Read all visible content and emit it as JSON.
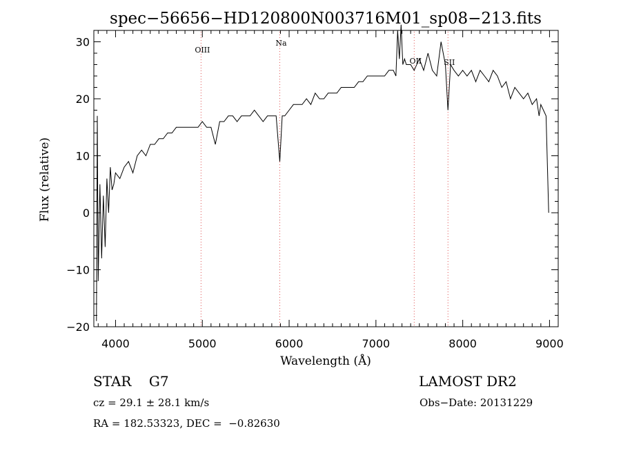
{
  "chart_data": {
    "type": "line",
    "title": "spec−56656−HD120800N003716M01_sp08−213.fits",
    "xlabel": "Wavelength (Å)",
    "ylabel": "Flux (relative)",
    "xlim": [
      3750,
      9100
    ],
    "ylim": [
      -20,
      32
    ],
    "xticks": [
      4000,
      5000,
      6000,
      7000,
      8000,
      9000
    ],
    "xtick_labels": [
      "4000",
      "5000",
      "6000",
      "7000",
      "8000",
      "9000"
    ],
    "yticks": [
      -20,
      -10,
      0,
      10,
      20,
      30
    ],
    "ytick_labels": [
      "−20",
      "−10",
      "0",
      "10",
      "20",
      "30"
    ],
    "grid": false,
    "spectral_lines": [
      {
        "label": "OIII",
        "x": 4985
      },
      {
        "label": "Na",
        "x": 5892
      },
      {
        "label": "OII",
        "x": 7441
      },
      {
        "label": "SII",
        "x": 7830
      }
    ],
    "series": [
      {
        "color": "#000000",
        "points": [
          [
            3780,
            -19
          ],
          [
            3790,
            17
          ],
          [
            3800,
            -12
          ],
          [
            3820,
            5
          ],
          [
            3840,
            -8
          ],
          [
            3860,
            3
          ],
          [
            3880,
            -6
          ],
          [
            3900,
            6
          ],
          [
            3920,
            0
          ],
          [
            3940,
            8
          ],
          [
            3960,
            4
          ],
          [
            3980,
            5
          ],
          [
            4000,
            7
          ],
          [
            4050,
            6
          ],
          [
            4100,
            8
          ],
          [
            4150,
            9
          ],
          [
            4200,
            7
          ],
          [
            4250,
            10
          ],
          [
            4300,
            11
          ],
          [
            4350,
            10
          ],
          [
            4400,
            12
          ],
          [
            4450,
            12
          ],
          [
            4500,
            13
          ],
          [
            4550,
            13
          ],
          [
            4600,
            14
          ],
          [
            4650,
            14
          ],
          [
            4700,
            15
          ],
          [
            4750,
            15
          ],
          [
            4800,
            15
          ],
          [
            4850,
            15
          ],
          [
            4900,
            15
          ],
          [
            4950,
            15
          ],
          [
            5000,
            16
          ],
          [
            5050,
            15
          ],
          [
            5100,
            15
          ],
          [
            5150,
            12
          ],
          [
            5200,
            16
          ],
          [
            5250,
            16
          ],
          [
            5300,
            17
          ],
          [
            5350,
            17
          ],
          [
            5400,
            16
          ],
          [
            5450,
            17
          ],
          [
            5500,
            17
          ],
          [
            5550,
            17
          ],
          [
            5600,
            18
          ],
          [
            5650,
            17
          ],
          [
            5700,
            16
          ],
          [
            5750,
            17
          ],
          [
            5800,
            17
          ],
          [
            5850,
            17
          ],
          [
            5892,
            9
          ],
          [
            5920,
            17
          ],
          [
            5950,
            17
          ],
          [
            6000,
            18
          ],
          [
            6050,
            19
          ],
          [
            6100,
            19
          ],
          [
            6150,
            19
          ],
          [
            6200,
            20
          ],
          [
            6250,
            19
          ],
          [
            6300,
            21
          ],
          [
            6350,
            20
          ],
          [
            6400,
            20
          ],
          [
            6450,
            21
          ],
          [
            6500,
            21
          ],
          [
            6550,
            21
          ],
          [
            6600,
            22
          ],
          [
            6650,
            22
          ],
          [
            6700,
            22
          ],
          [
            6750,
            22
          ],
          [
            6800,
            23
          ],
          [
            6850,
            23
          ],
          [
            6900,
            24
          ],
          [
            6950,
            24
          ],
          [
            7000,
            24
          ],
          [
            7050,
            24
          ],
          [
            7100,
            24
          ],
          [
            7150,
            25
          ],
          [
            7200,
            25
          ],
          [
            7230,
            24
          ],
          [
            7250,
            32
          ],
          [
            7270,
            27
          ],
          [
            7290,
            33
          ],
          [
            7310,
            26
          ],
          [
            7330,
            27
          ],
          [
            7350,
            26
          ],
          [
            7400,
            26
          ],
          [
            7440,
            25
          ],
          [
            7500,
            27
          ],
          [
            7550,
            25
          ],
          [
            7600,
            28
          ],
          [
            7650,
            25
          ],
          [
            7700,
            24
          ],
          [
            7750,
            30
          ],
          [
            7800,
            26
          ],
          [
            7830,
            18
          ],
          [
            7860,
            26
          ],
          [
            7900,
            25
          ],
          [
            7950,
            24
          ],
          [
            8000,
            25
          ],
          [
            8050,
            24
          ],
          [
            8100,
            25
          ],
          [
            8150,
            23
          ],
          [
            8200,
            25
          ],
          [
            8250,
            24
          ],
          [
            8300,
            23
          ],
          [
            8350,
            25
          ],
          [
            8400,
            24
          ],
          [
            8450,
            22
          ],
          [
            8500,
            23
          ],
          [
            8550,
            20
          ],
          [
            8600,
            22
          ],
          [
            8650,
            21
          ],
          [
            8700,
            20
          ],
          [
            8750,
            21
          ],
          [
            8800,
            19
          ],
          [
            8850,
            20
          ],
          [
            8880,
            17
          ],
          [
            8900,
            19
          ],
          [
            8930,
            18
          ],
          [
            8960,
            17
          ],
          [
            8990,
            0
          ]
        ]
      }
    ]
  },
  "footer": {
    "object_type": "STAR    G7",
    "survey": "LAMOST DR2",
    "cz": "cz = 29.1 ± 28.1 km/s",
    "obs_date": "Obs−Date: 20131229",
    "radec": "RA = 182.53323, DEC =  −0.82630"
  }
}
